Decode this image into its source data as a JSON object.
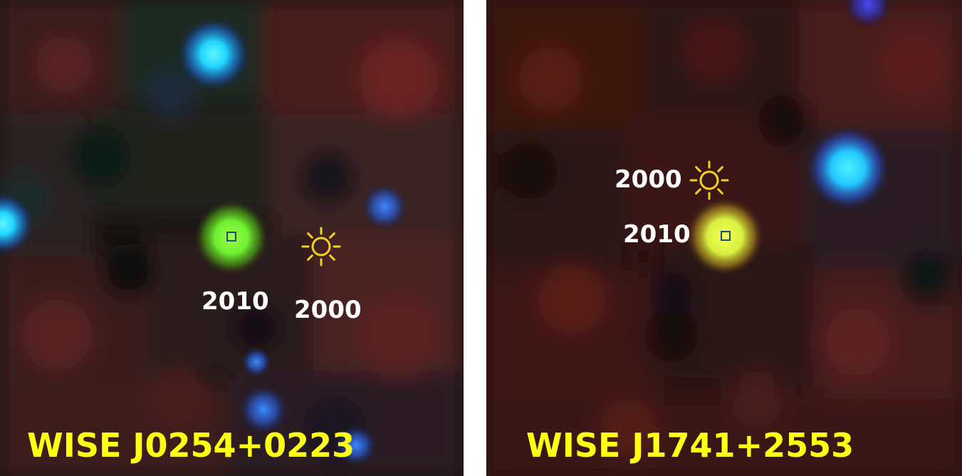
{
  "panels": [
    {
      "object_name": "WISE J0254+0223",
      "epoch_current": "2010",
      "epoch_past": "2000"
    },
    {
      "object_name": "WISE J1741+2553",
      "epoch_current": "2010",
      "epoch_past": "2000"
    }
  ],
  "colors": {
    "label_yellow": "#ffff14",
    "epoch_white": "#ffffff",
    "sun_symbol": "#f2d21a",
    "source_marker": "#1f4a7a",
    "left_target": "#7cff3a",
    "right_target": "#e6ff4a",
    "field_star": "#28d4ff"
  },
  "icons": {
    "past_position": "sun-icon",
    "current_position": "square-marker-icon"
  }
}
